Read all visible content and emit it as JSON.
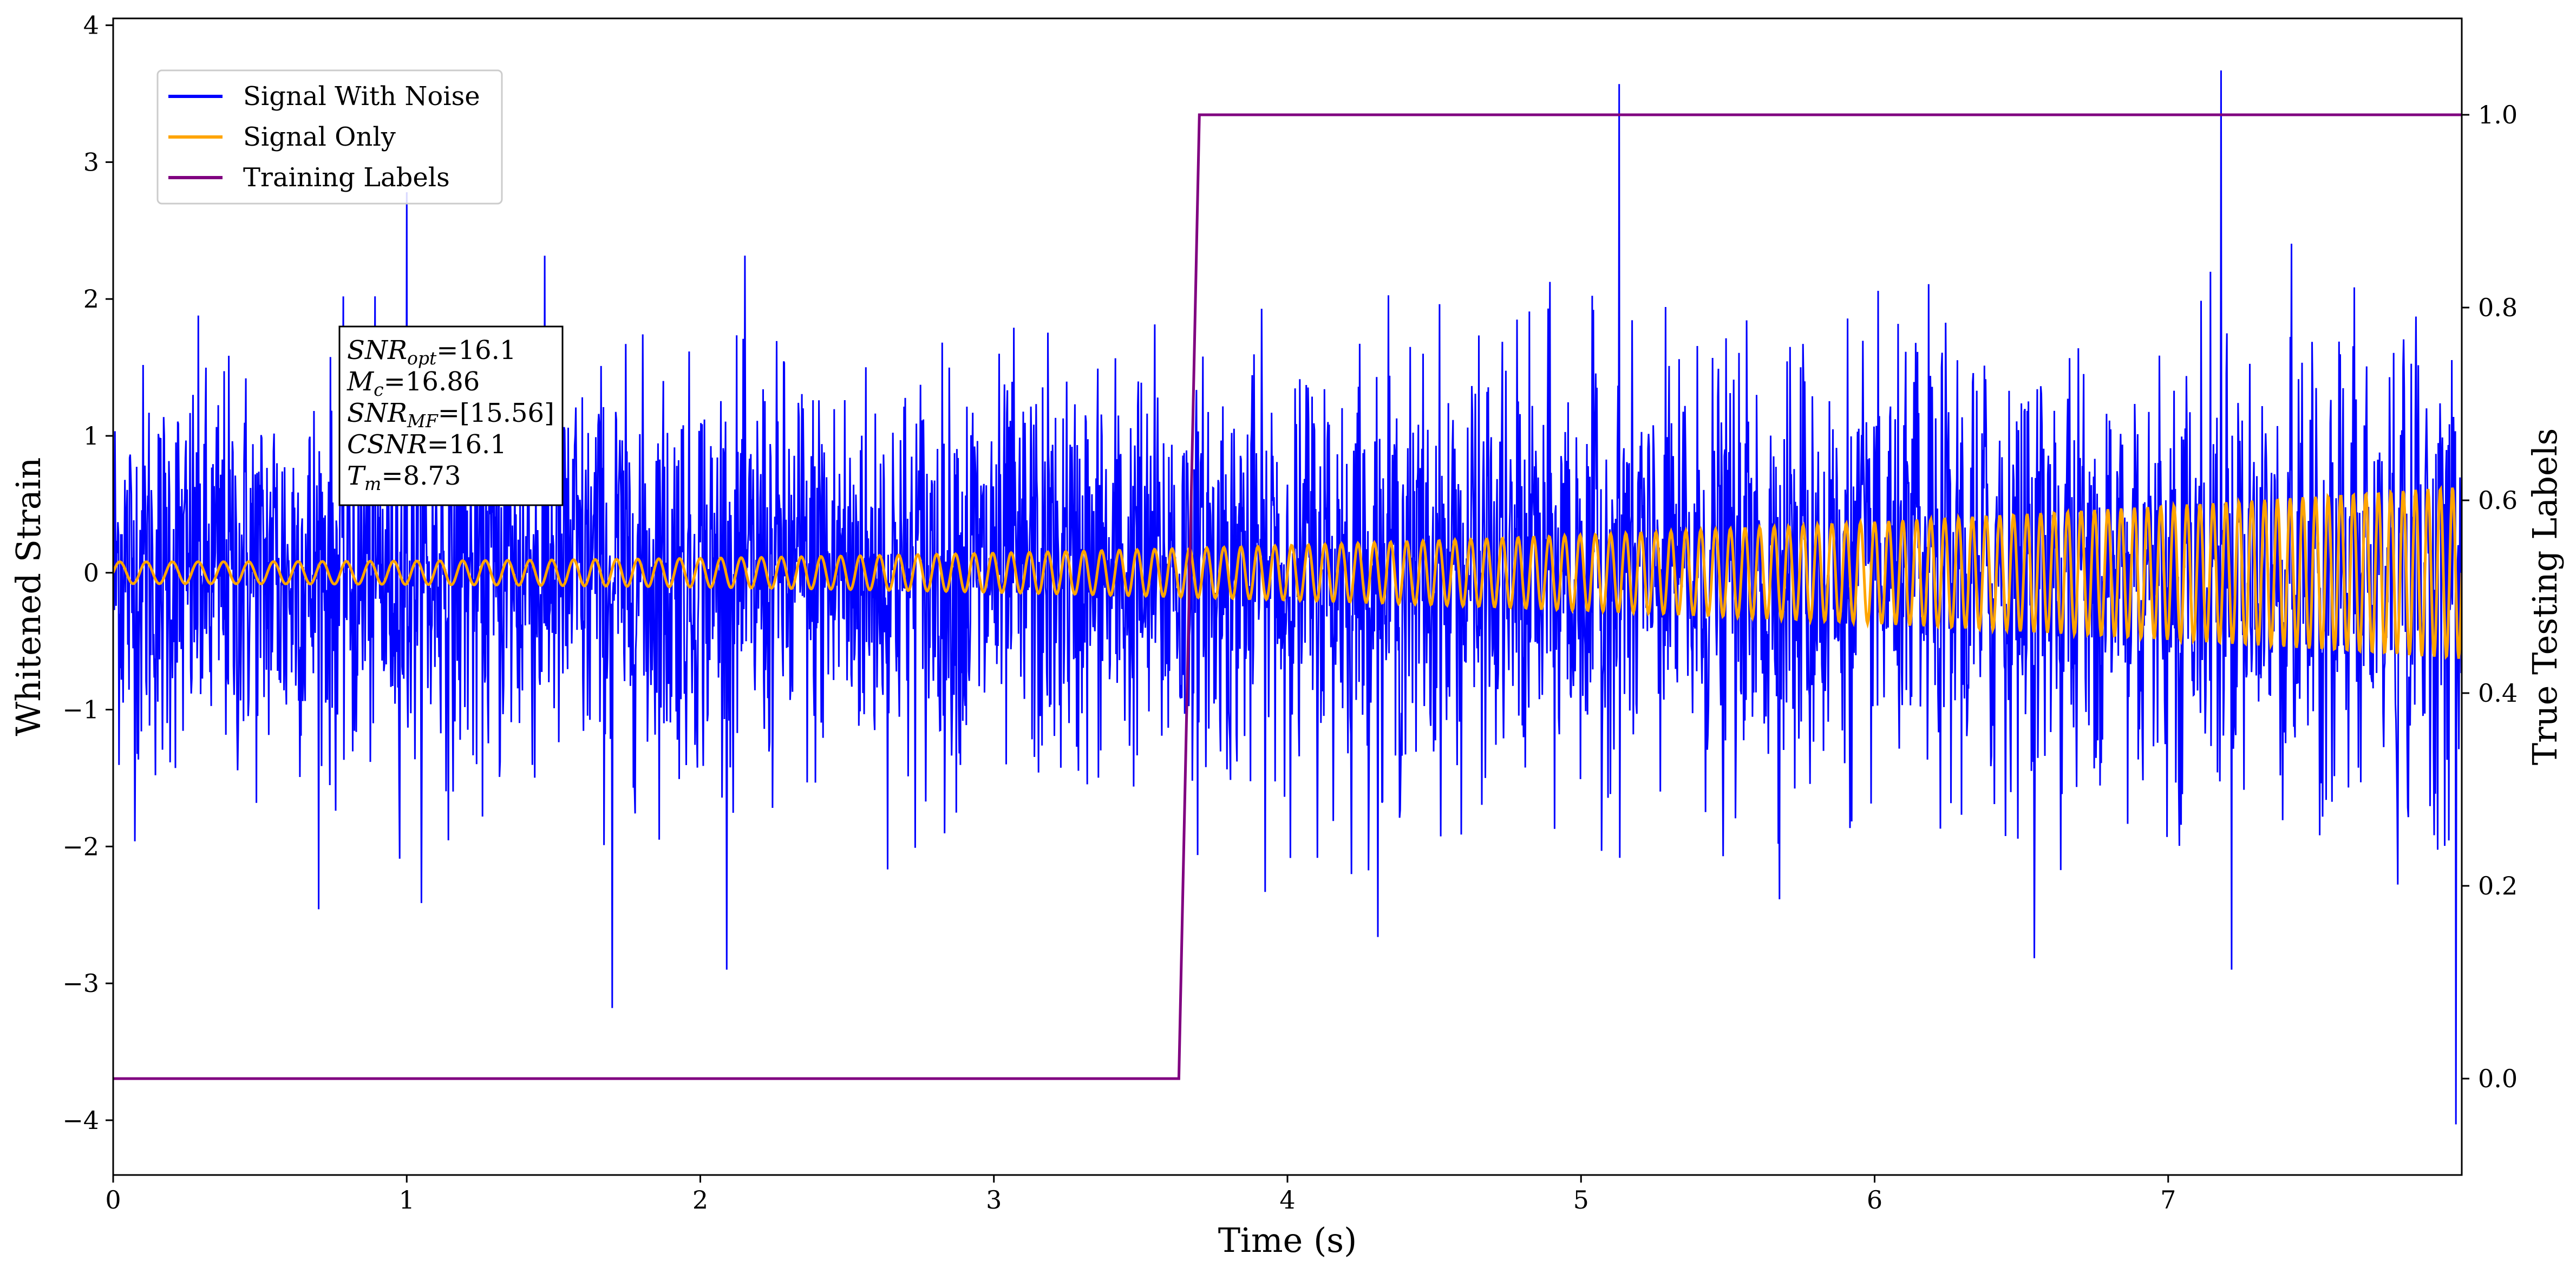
{
  "chart_data": {
    "type": "line",
    "title": "",
    "xlabel": "Time (s)",
    "ylabel": "Whitened Strain",
    "y2label": "True Testing Labels",
    "xlim": [
      0,
      8
    ],
    "ylim": [
      -4.4,
      4.05
    ],
    "y2lim": [
      -0.1,
      1.1
    ],
    "xticks": [
      0,
      1,
      2,
      3,
      4,
      5,
      6,
      7
    ],
    "xtick_labels": [
      "0",
      "1",
      "2",
      "3",
      "4",
      "5",
      "6",
      "7"
    ],
    "yticks": [
      -4,
      -3,
      -2,
      -1,
      0,
      1,
      2,
      3,
      4
    ],
    "ytick_labels": [
      "−4",
      "−3",
      "−2",
      "−1",
      "0",
      "1",
      "2",
      "3",
      "4"
    ],
    "y2ticks": [
      0.0,
      0.2,
      0.4,
      0.6,
      0.8,
      1.0
    ],
    "y2tick_labels": [
      "0.0",
      "0.2",
      "0.4",
      "0.6",
      "0.8",
      "1.0"
    ],
    "grid": false,
    "legend_placement": "upper-left",
    "series": [
      {
        "name": "Signal With Noise",
        "color": "#0000ff",
        "axis": "left",
        "description_values": {
          "mean": 0.0,
          "typical_range": [
            -2.0,
            2.0
          ],
          "peaks": [
            {
              "x": 5.13,
              "y": 3.57
            },
            {
              "x": 7.18,
              "y": 3.67
            },
            {
              "x": 1.0,
              "y": 2.78
            },
            {
              "x": 1.7,
              "y": -3.18
            },
            {
              "x": 7.98,
              "y": -4.03
            }
          ]
        }
      },
      {
        "name": "Signal Only",
        "color": "#ffa500",
        "axis": "left",
        "description_values": {
          "amplitude_start": 0.08,
          "amplitude_end": 0.63,
          "cycles_per_second_start": 11,
          "cycles_per_second_end": 24
        }
      },
      {
        "name": "Training Labels",
        "color": "#800080",
        "axis": "right",
        "x": [
          0,
          3.63,
          3.7,
          8.0
        ],
        "values": [
          0,
          0,
          1,
          1
        ]
      }
    ],
    "annotation": {
      "lines": [
        {
          "var": "SNR",
          "sub": "opt",
          "value": "=16.1"
        },
        {
          "var": "M",
          "sub": "c",
          "value": "=16.86"
        },
        {
          "var": "SNR",
          "sub": "MF",
          "value": "=[15.56]"
        },
        {
          "var": "CSNR",
          "sub": "",
          "value": "=16.1"
        },
        {
          "var": "T",
          "sub": "m",
          "value": "=8.73"
        }
      ]
    }
  }
}
